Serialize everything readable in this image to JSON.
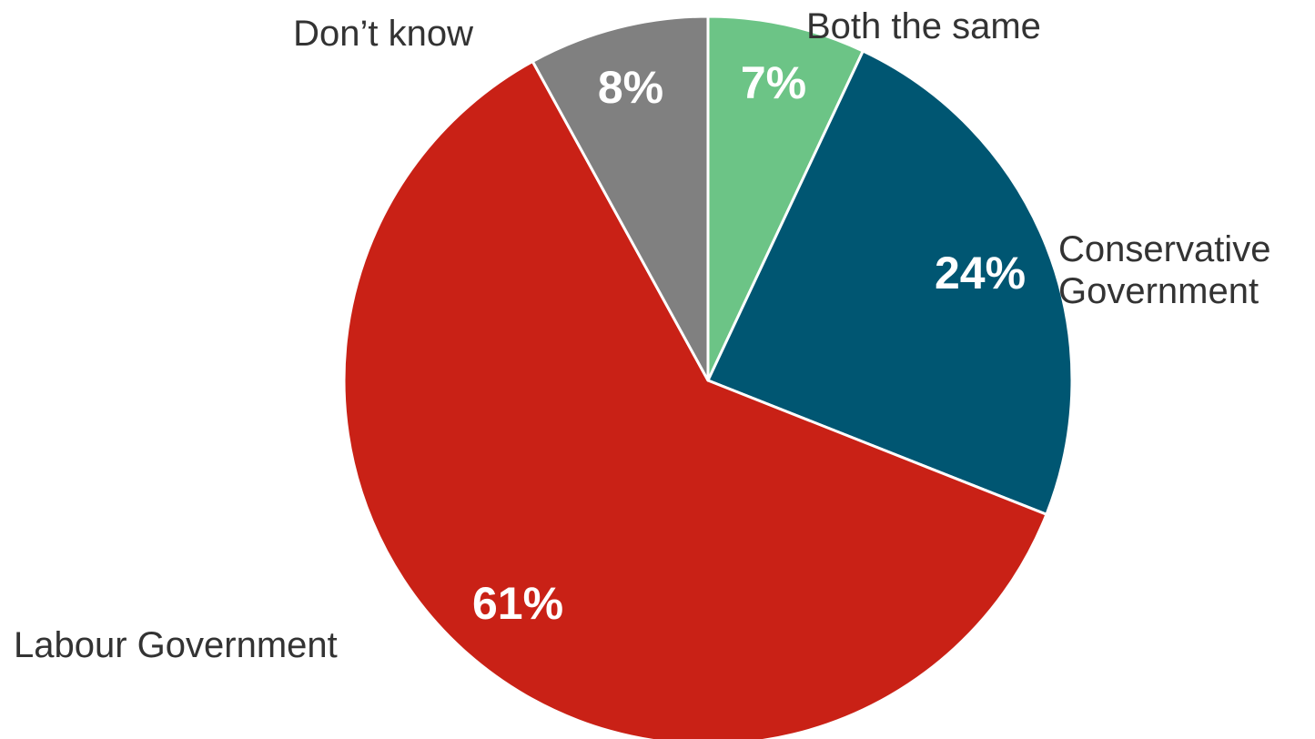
{
  "chart_data": {
    "type": "pie",
    "start_angle_deg": 0,
    "direction": "clockwise",
    "slices": [
      {
        "label": "Both the same",
        "label_lines": [
          "Both the same"
        ],
        "value": 7,
        "value_label": "7%",
        "color": "#6CC486"
      },
      {
        "label": "Conservative Government",
        "label_lines": [
          "Conservative",
          "Government"
        ],
        "value": 24,
        "value_label": "24%",
        "color": "#005672"
      },
      {
        "label": "Labour Government",
        "label_lines": [
          "Labour Government"
        ],
        "value": 61,
        "value_label": "61%",
        "color": "#C92116"
      },
      {
        "label": "Don’t know",
        "label_lines": [
          "Don’t know"
        ],
        "value": 8,
        "value_label": "8%",
        "color": "#808080"
      }
    ]
  }
}
